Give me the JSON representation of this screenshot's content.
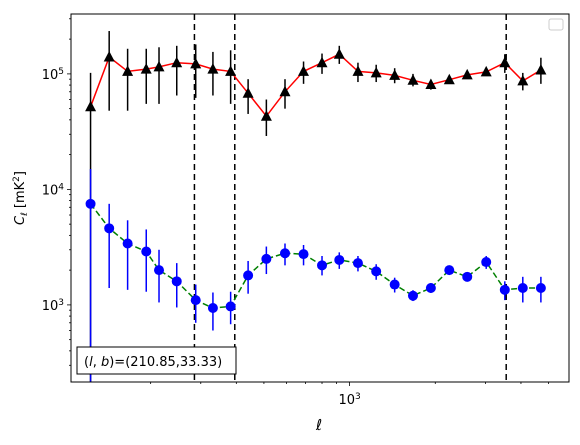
{
  "chart_data": {
    "type": "scatter",
    "xscale": "log",
    "yscale": "log",
    "xlabel": "ℓ",
    "ylabel": "Cℓ  [mK²]",
    "xlim": [
      105,
      5900
    ],
    "ylim": [
      215,
      330000
    ],
    "x_ticks": [
      {
        "value": 1000,
        "label": "10³"
      }
    ],
    "y_ticks": [
      {
        "value": 1000,
        "label": "10³"
      },
      {
        "value": 10000,
        "label": "10⁴"
      },
      {
        "value": 100000,
        "label": "10⁵"
      }
    ],
    "annotation": "(l, b)=(210.85,33.33)",
    "legend": {
      "position": "top-right",
      "entries": []
    },
    "vlines": [
      285,
      395,
      3550
    ],
    "series": [
      {
        "marker": "triangle",
        "color": "#000000",
        "line_color": "#ff0000",
        "line_style": "solid",
        "points": [
          {
            "x": 123,
            "y": 52000,
            "lo": 215,
            "hi": 102000
          },
          {
            "x": 143,
            "y": 140000,
            "lo": 48000,
            "hi": 235000
          },
          {
            "x": 166,
            "y": 105000,
            "lo": 48000,
            "hi": 165000
          },
          {
            "x": 193,
            "y": 110000,
            "lo": 55000,
            "hi": 165000
          },
          {
            "x": 214,
            "y": 115000,
            "lo": 55000,
            "hi": 170000
          },
          {
            "x": 247,
            "y": 125000,
            "lo": 65000,
            "hi": 175000
          },
          {
            "x": 288,
            "y": 122000,
            "lo": 62000,
            "hi": 180000
          },
          {
            "x": 331,
            "y": 110000,
            "lo": 65000,
            "hi": 155000
          },
          {
            "x": 382,
            "y": 105000,
            "lo": 55000,
            "hi": 160000
          },
          {
            "x": 440,
            "y": 68000,
            "lo": 45000,
            "hi": 90000
          },
          {
            "x": 510,
            "y": 43000,
            "lo": 29000,
            "hi": 60000
          },
          {
            "x": 593,
            "y": 70000,
            "lo": 50000,
            "hi": 90000
          },
          {
            "x": 689,
            "y": 105000,
            "lo": 82000,
            "hi": 128000
          },
          {
            "x": 800,
            "y": 125000,
            "lo": 100000,
            "hi": 150000
          },
          {
            "x": 920,
            "y": 148000,
            "lo": 122000,
            "hi": 175000
          },
          {
            "x": 1070,
            "y": 105000,
            "lo": 85000,
            "hi": 125000
          },
          {
            "x": 1240,
            "y": 102000,
            "lo": 85000,
            "hi": 120000
          },
          {
            "x": 1440,
            "y": 97000,
            "lo": 83000,
            "hi": 112000
          },
          {
            "x": 1670,
            "y": 88000,
            "lo": 78000,
            "hi": 100000
          },
          {
            "x": 1930,
            "y": 81000,
            "lo": 73000,
            "hi": 89000
          },
          {
            "x": 2240,
            "y": 89000,
            "lo": 82000,
            "hi": 96000
          },
          {
            "x": 2590,
            "y": 98000,
            "lo": 91000,
            "hi": 106000
          },
          {
            "x": 3020,
            "y": 104000,
            "lo": 96000,
            "hi": 112000
          },
          {
            "x": 3510,
            "y": 125000,
            "lo": 102000,
            "hi": 148000
          },
          {
            "x": 4060,
            "y": 87000,
            "lo": 72000,
            "hi": 102000
          },
          {
            "x": 4700,
            "y": 108000,
            "lo": 82000,
            "hi": 138000
          }
        ]
      },
      {
        "marker": "circle",
        "color": "#0000ff",
        "line_color": "#008000",
        "line_style": "dashed",
        "points": [
          {
            "x": 123,
            "y": 7500,
            "lo": 215,
            "hi": 15000
          },
          {
            "x": 143,
            "y": 4600,
            "lo": 1400,
            "hi": 7500
          },
          {
            "x": 166,
            "y": 3400,
            "lo": 1350,
            "hi": 5400
          },
          {
            "x": 193,
            "y": 2900,
            "lo": 1300,
            "hi": 4500
          },
          {
            "x": 214,
            "y": 2000,
            "lo": 1050,
            "hi": 3000
          },
          {
            "x": 247,
            "y": 1600,
            "lo": 950,
            "hi": 2300
          },
          {
            "x": 288,
            "y": 1100,
            "lo": 700,
            "hi": 1500
          },
          {
            "x": 331,
            "y": 940,
            "lo": 600,
            "hi": 1280
          },
          {
            "x": 382,
            "y": 970,
            "lo": 680,
            "hi": 1300
          },
          {
            "x": 440,
            "y": 1800,
            "lo": 1250,
            "hi": 2400
          },
          {
            "x": 510,
            "y": 2500,
            "lo": 1850,
            "hi": 3200
          },
          {
            "x": 593,
            "y": 2800,
            "lo": 2200,
            "hi": 3400
          },
          {
            "x": 689,
            "y": 2750,
            "lo": 2200,
            "hi": 3300
          },
          {
            "x": 800,
            "y": 2200,
            "lo": 1800,
            "hi": 2650
          },
          {
            "x": 920,
            "y": 2450,
            "lo": 2050,
            "hi": 2850
          },
          {
            "x": 1070,
            "y": 2300,
            "lo": 1950,
            "hi": 2650
          },
          {
            "x": 1240,
            "y": 1950,
            "lo": 1650,
            "hi": 2250
          },
          {
            "x": 1440,
            "y": 1500,
            "lo": 1280,
            "hi": 1720
          },
          {
            "x": 1670,
            "y": 1200,
            "lo": 1080,
            "hi": 1340
          },
          {
            "x": 1930,
            "y": 1400,
            "lo": 1270,
            "hi": 1540
          },
          {
            "x": 2240,
            "y": 2000,
            "lo": 1830,
            "hi": 2180
          },
          {
            "x": 2590,
            "y": 1750,
            "lo": 1600,
            "hi": 1900
          },
          {
            "x": 3020,
            "y": 2350,
            "lo": 2050,
            "hi": 2650
          },
          {
            "x": 3510,
            "y": 1350,
            "lo": 1100,
            "hi": 1600
          },
          {
            "x": 4060,
            "y": 1400,
            "lo": 1050,
            "hi": 1750
          },
          {
            "x": 4700,
            "y": 1400,
            "lo": 1050,
            "hi": 1750
          }
        ]
      }
    ]
  }
}
